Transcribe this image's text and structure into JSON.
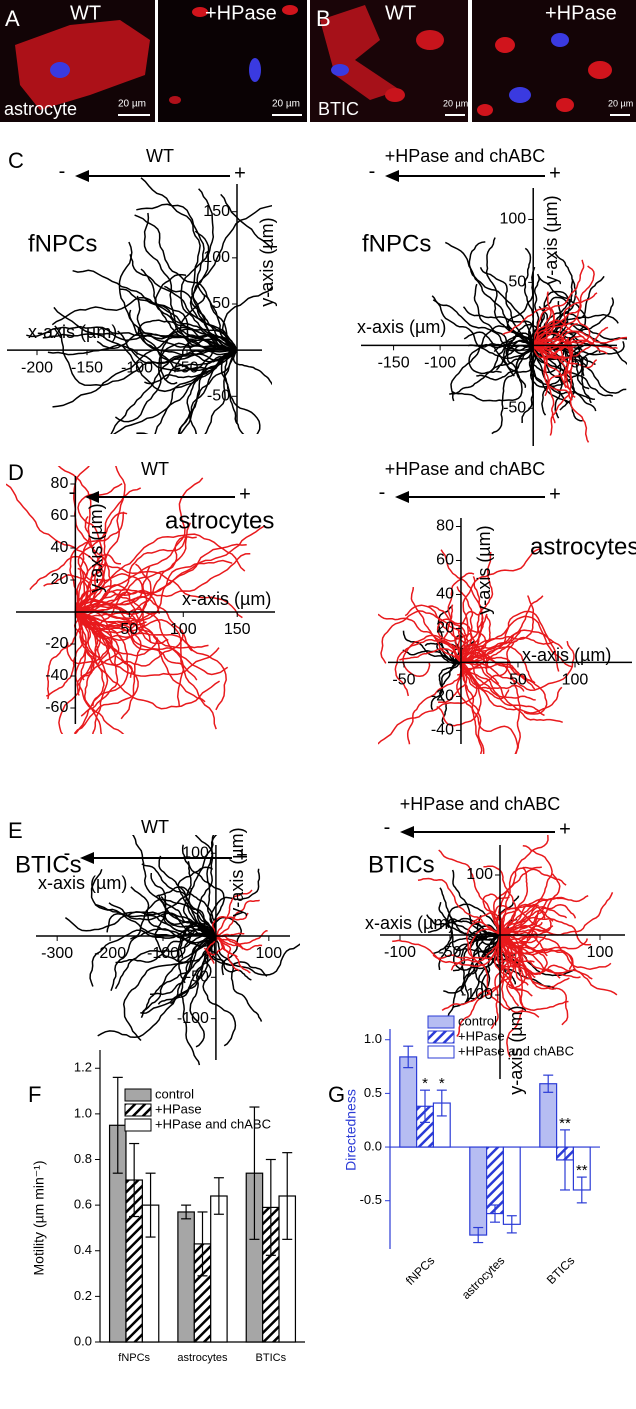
{
  "images": {
    "panels": [
      {
        "letter": "A",
        "labels": [
          "WT",
          "+HPase"
        ],
        "cell_label": "astrocyte",
        "scale_bars": [
          "20 µm",
          "20 µm"
        ]
      },
      {
        "letter": "B",
        "labels": [
          "WT",
          "+HPase"
        ],
        "cell_label": "BTIC",
        "scale_bars": [
          "20 µm",
          "20 µm"
        ]
      }
    ]
  },
  "chart_data": [
    {
      "type": "trajectory",
      "panel": "C",
      "title": "WT",
      "arrow_labels": [
        "-",
        "+"
      ],
      "label": "fNPCs",
      "x_label": "x-axis (µm)",
      "y_label": "y-axis (µm)",
      "xlim": [
        -230,
        25
      ],
      "ylim": [
        -80,
        180
      ],
      "xticks": [
        -200,
        -150,
        -100,
        -50
      ],
      "yticks": [
        -50,
        50,
        100,
        150
      ],
      "track_colors": [
        "#000000",
        "#e8191c"
      ]
    },
    {
      "type": "trajectory",
      "title": "+HPase and chABC",
      "arrow_labels": [
        "-",
        "+"
      ],
      "label": "fNPCs",
      "x_label": "x-axis (µm)",
      "y_label": "y-axis (µm)",
      "xlim": [
        -185,
        90
      ],
      "ylim": [
        -80,
        125
      ],
      "xticks": [
        -150,
        -100,
        50
      ],
      "yticks": [
        -50,
        50,
        100
      ],
      "track_colors": [
        "#000000",
        "#e8191c"
      ]
    },
    {
      "type": "trajectory",
      "panel": "D",
      "title": "WT",
      "arrow_labels": [
        "-",
        "+"
      ],
      "label": "astrocytes",
      "x_label": "x-axis (µm)",
      "y_label": "y-axis (µm)",
      "xlim": [
        -55,
        185
      ],
      "ylim": [
        -70,
        85
      ],
      "xticks": [
        50,
        100,
        150
      ],
      "yticks": [
        -60,
        -40,
        -20,
        20,
        40,
        60,
        80
      ],
      "track_colors": [
        "#000000",
        "#e8191c"
      ]
    },
    {
      "type": "trajectory",
      "title": "+HPase and chABC",
      "arrow_labels": [
        "-",
        "+"
      ],
      "label": "astrocytes",
      "x_label": "x-axis (µm)",
      "y_label": "y-axis (µm)",
      "xlim": [
        -64,
        150
      ],
      "ylim": [
        -48,
        85
      ],
      "xticks": [
        -50,
        50,
        100
      ],
      "yticks": [
        -40,
        -20,
        20,
        40,
        60,
        80
      ],
      "track_colors": [
        "#000000",
        "#e8191c"
      ]
    },
    {
      "type": "trajectory",
      "panel": "E",
      "title": "WT",
      "arrow_labels": [
        "-",
        "+"
      ],
      "label": "BTICs",
      "x_label": "x-axis (µm)",
      "y_label": "y-axis (µm)",
      "xlim": [
        -340,
        140
      ],
      "ylim": [
        -150,
        110
      ],
      "xticks": [
        -300,
        -200,
        -100,
        100
      ],
      "yticks": [
        -100,
        -50,
        100
      ],
      "track_colors": [
        "#000000",
        "#e8191c"
      ]
    },
    {
      "type": "trajectory",
      "title": "+HPase and chABC",
      "arrow_labels": [
        "-",
        "+"
      ],
      "label": "BTICs",
      "x_label": "x-axis (µm)",
      "y_label": "y-axis (µm)",
      "xlim": [
        -120,
        125
      ],
      "ylim": [
        -240,
        150
      ],
      "xticks": [
        -100,
        -50,
        100
      ],
      "yticks": [
        -100,
        100
      ],
      "track_colors": [
        "#000000",
        "#e8191c"
      ]
    },
    {
      "type": "bar",
      "panel": "F",
      "y_label": "Motility (µm min⁻¹)",
      "categories": [
        "fNPCs",
        "astrocytes",
        "BTICs"
      ],
      "edge_color": "#000000",
      "ylim": [
        0,
        1.28
      ],
      "yticks": [
        {
          "value": 0,
          "label": "0.0"
        },
        {
          "value": 0.2,
          "label": "0.2"
        },
        {
          "value": 0.4,
          "label": "0.4"
        },
        {
          "value": 0.6,
          "label": "0.6"
        },
        {
          "value": 0.8,
          "label": "0.8"
        },
        {
          "value": 1.0,
          "label": "1.0"
        },
        {
          "value": 1.2,
          "label": "1.2"
        }
      ],
      "series": [
        {
          "name": "control",
          "color": "#a6a6a6",
          "values": [
            0.95,
            0.57,
            0.74
          ],
          "errors": [
            0.21,
            0.03,
            0.29
          ]
        },
        {
          "name": "+HPase",
          "color": "#ffffff",
          "hatched": true,
          "values": [
            0.71,
            0.43,
            0.59
          ],
          "errors": [
            0.16,
            0.14,
            0.21
          ]
        },
        {
          "name": "+HPase and chABC",
          "color": "#ffffff",
          "values": [
            0.6,
            0.64,
            0.64
          ],
          "errors": [
            0.14,
            0.08,
            0.19
          ]
        }
      ]
    },
    {
      "type": "bar",
      "panel": "G",
      "y_label": "Directedness",
      "categories": [
        "fNPCs",
        "astrocytes",
        "BTICs"
      ],
      "edge_color": "#2b3bd6",
      "ylim": [
        -0.95,
        1.1
      ],
      "yticks": [
        {
          "value": -0.5,
          "label": "-0.5"
        },
        {
          "value": 0,
          "label": "0.0"
        },
        {
          "value": 0.5,
          "label": "0.5"
        },
        {
          "value": 1.0,
          "label": "1.0"
        }
      ],
      "series": [
        {
          "name": "control",
          "color": "#b6bdf2",
          "values": [
            0.84,
            -0.82,
            0.59
          ],
          "errors": [
            0.1,
            0.07,
            0.08
          ]
        },
        {
          "name": "+HPase",
          "color": "#ffffff",
          "hatched": true,
          "values": [
            0.38,
            -0.62,
            -0.12
          ],
          "errors": [
            0.15,
            0.08,
            0.28
          ]
        },
        {
          "name": "+HPase and chABC",
          "color": "#ffffff",
          "values": [
            0.41,
            -0.72,
            -0.4
          ],
          "errors": [
            0.12,
            0.08,
            0.12
          ]
        }
      ],
      "annotations": [
        {
          "series": 1,
          "category": 0,
          "text": "*"
        },
        {
          "series": 2,
          "category": 0,
          "text": "*"
        },
        {
          "series": 1,
          "category": 2,
          "text": "**"
        },
        {
          "series": 2,
          "category": 2,
          "text": "**"
        }
      ]
    }
  ]
}
